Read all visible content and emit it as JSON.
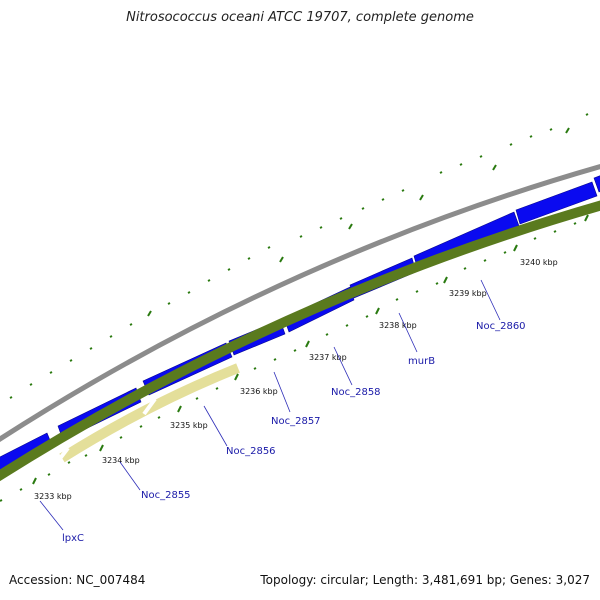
{
  "header": {
    "title": "Nitrosococcus oceani ATCC 19707, complete genome"
  },
  "footer": {
    "accession": "Accession: NC_007484",
    "summary": "Topology: circular; Length: 3,481,691 bp; Genes: 3,027"
  },
  "colors": {
    "backbone": "#8c8c8c",
    "cds": "#0a0af0",
    "gc_dark": "#5a7a1e",
    "gc_light": "#eee8a6",
    "ticks": "#2a7a10",
    "label": "#1a1aa8"
  },
  "kbp_labels": [
    "3233 kbp",
    "3234 kbp",
    "3235 kbp",
    "3236 kbp",
    "3237 kbp",
    "3238 kbp",
    "3239 kbp",
    "3240 kbp"
  ],
  "gene_labels": [
    "lpxC",
    "Noc_2855",
    "Noc_2856",
    "Noc_2857",
    "Noc_2858",
    "murB",
    "Noc_2860"
  ]
}
